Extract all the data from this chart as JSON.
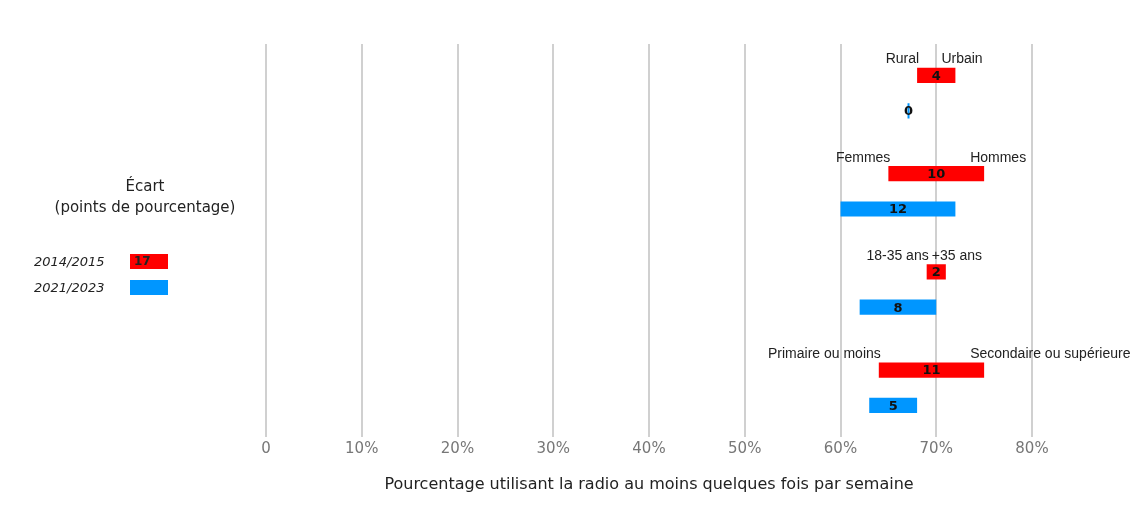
{
  "chart_data": {
    "type": "bar",
    "orientation": "horizontal",
    "xlabel": "Pourcentage utilisant la radio au moins quelques fois par semaine",
    "legend_title": "Écart\n(points de pourcentage)",
    "categories": [
      null,
      null,
      null,
      null
    ],
    "series": [
      {
        "name": "2014/2015",
        "color": "#ff0000",
        "base": [
          68,
          65,
          69,
          64
        ],
        "values": [
          4,
          10,
          2,
          11
        ]
      },
      {
        "name": "2021/2023",
        "color": "#0096ff",
        "base": [
          67,
          60,
          62,
          63
        ],
        "values": [
          0,
          12,
          8,
          5
        ]
      }
    ],
    "xlim": [
      0,
      80
    ],
    "xticks": [
      {
        "value": 0,
        "label": "0"
      },
      {
        "value": 10,
        "label": "10%"
      },
      {
        "value": 20,
        "label": "20%"
      },
      {
        "value": 30,
        "label": "30%"
      },
      {
        "value": 40,
        "label": "40%"
      },
      {
        "value": 50,
        "label": "50%"
      },
      {
        "value": 60,
        "label": "60%"
      },
      {
        "value": 70,
        "label": "70%"
      },
      {
        "value": 80,
        "label": "80%"
      }
    ],
    "grid": "x",
    "legend": "left",
    "data_labels": true,
    "annotations": [
      "Rural",
      "Urbain",
      "Femmes",
      "Hommes",
      "18-35 ans",
      "+35 ans",
      "Primaire ou moins",
      "Secondaire ou supérieure",
      "17"
    ]
  }
}
